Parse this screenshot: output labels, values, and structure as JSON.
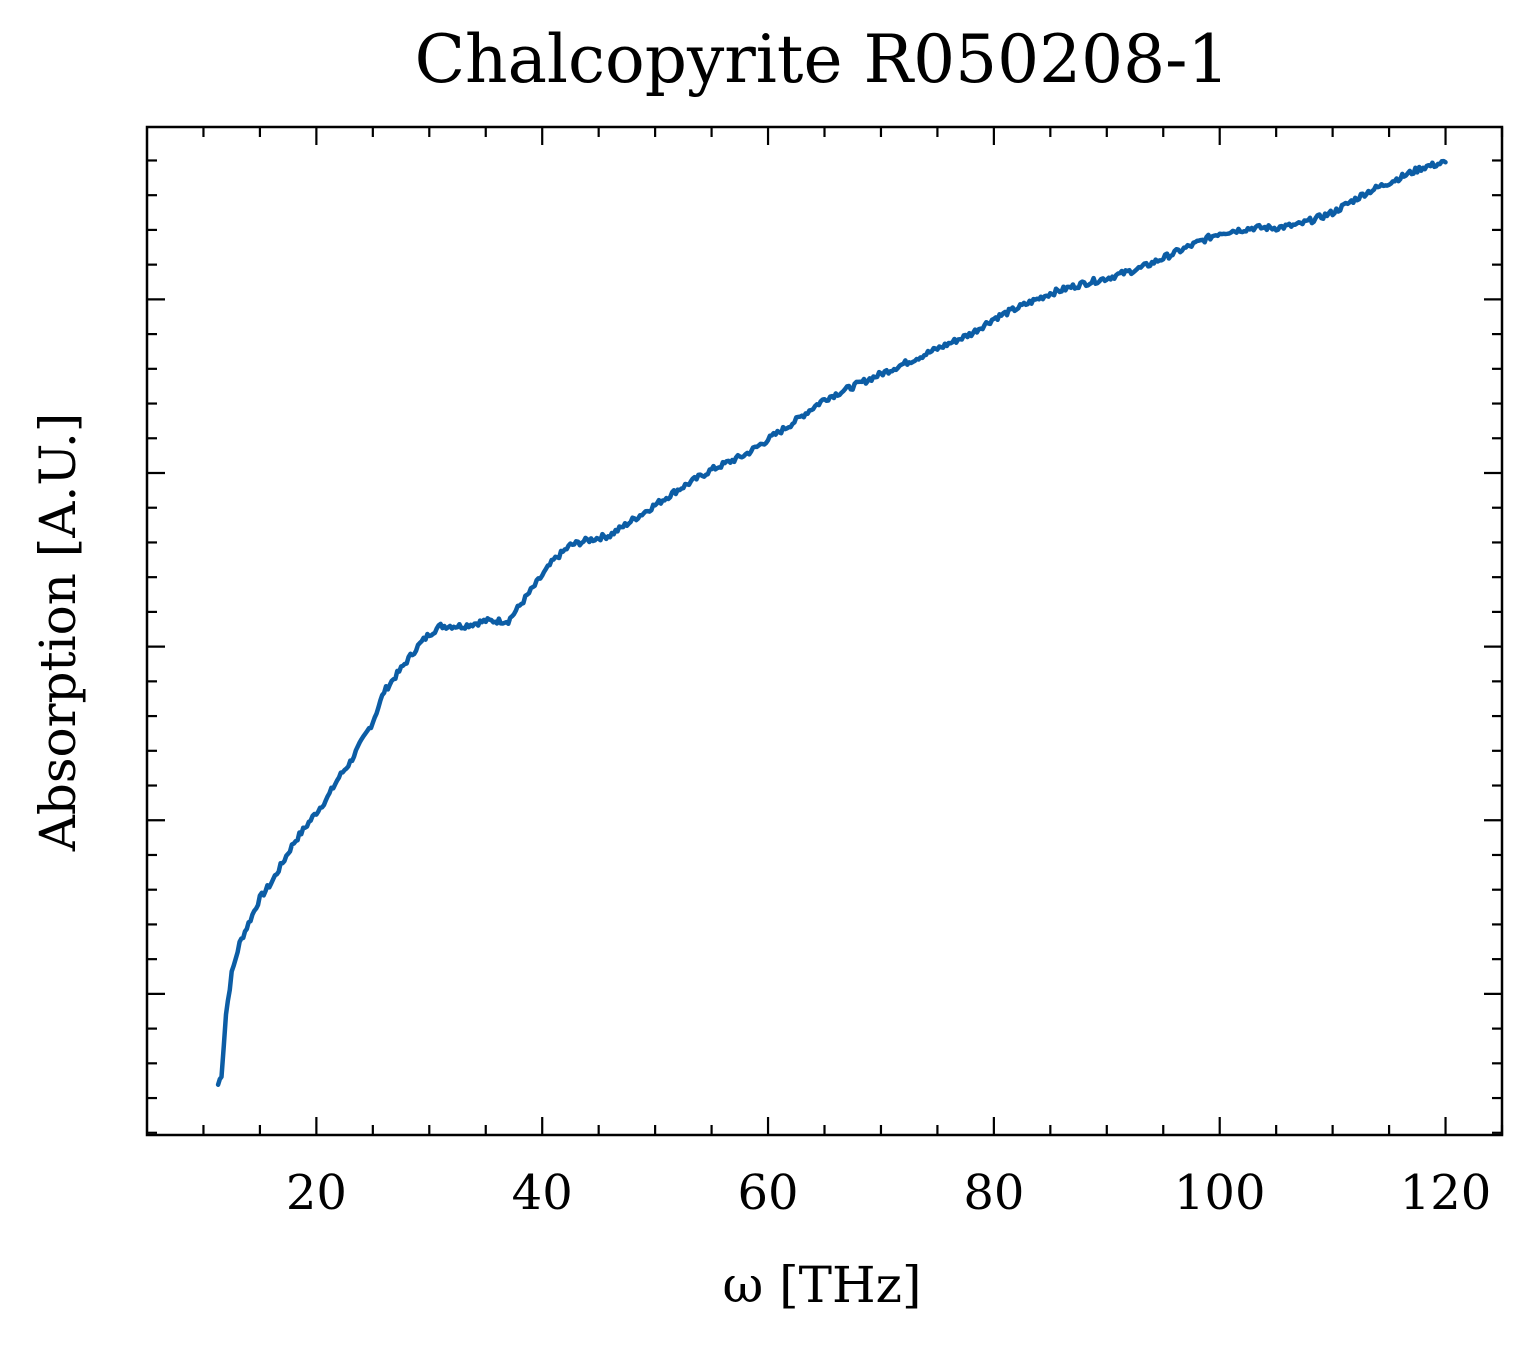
{
  "chart_data": {
    "type": "line",
    "title": "Chalcopyrite R050208-1",
    "xlabel": "ω [THz]",
    "ylabel": "Absorption [A.U.]",
    "xlim": [
      5,
      125
    ],
    "ylim": [
      0,
      1
    ],
    "x_ticks": [
      20,
      40,
      60,
      80,
      100,
      120
    ],
    "x_tick_labels": [
      "20",
      "40",
      "60",
      "80",
      "100",
      "120"
    ],
    "y_tick_labels_shown": false,
    "y_major_ticks": [
      0.14,
      0.314,
      0.486,
      0.657,
      0.829
    ],
    "grid": false,
    "line_color": "#0c5da5",
    "series": [
      {
        "x": [
          11.3,
          11.6,
          12.0,
          12.5,
          13.2,
          14.0,
          15.0,
          16.0,
          17.0,
          18.0,
          19.0,
          20.0,
          21.0,
          22.0,
          23.0,
          24.0,
          25.0,
          26.0,
          27.0,
          28.0,
          29.0,
          30.0,
          31.0,
          33.0,
          35.0,
          37.0,
          39.0,
          41.0,
          42.5,
          44.0,
          46.0,
          48.0,
          50.0,
          52.0,
          55.0,
          58.0,
          60.0,
          62.0,
          65.0,
          68.0,
          70.0,
          72.0,
          75.0,
          78.0,
          80.0,
          83.0,
          85.0,
          88.0,
          90.0,
          93.0,
          95.0,
          98.0,
          100.0,
          103.0,
          105.0,
          107.0,
          110.0,
          113.0,
          116.0,
          118.0,
          120.0
        ],
        "y": [
          0.05,
          0.06,
          0.12,
          0.16,
          0.19,
          0.21,
          0.235,
          0.25,
          0.27,
          0.29,
          0.305,
          0.32,
          0.335,
          0.355,
          0.37,
          0.39,
          0.41,
          0.44,
          0.455,
          0.47,
          0.485,
          0.497,
          0.505,
          0.505,
          0.51,
          0.51,
          0.54,
          0.57,
          0.585,
          0.59,
          0.595,
          0.61,
          0.625,
          0.64,
          0.66,
          0.675,
          0.69,
          0.705,
          0.73,
          0.745,
          0.755,
          0.765,
          0.78,
          0.795,
          0.81,
          0.825,
          0.835,
          0.845,
          0.85,
          0.86,
          0.87,
          0.885,
          0.895,
          0.9,
          0.9,
          0.903,
          0.915,
          0.935,
          0.95,
          0.96,
          0.965
        ]
      }
    ]
  }
}
